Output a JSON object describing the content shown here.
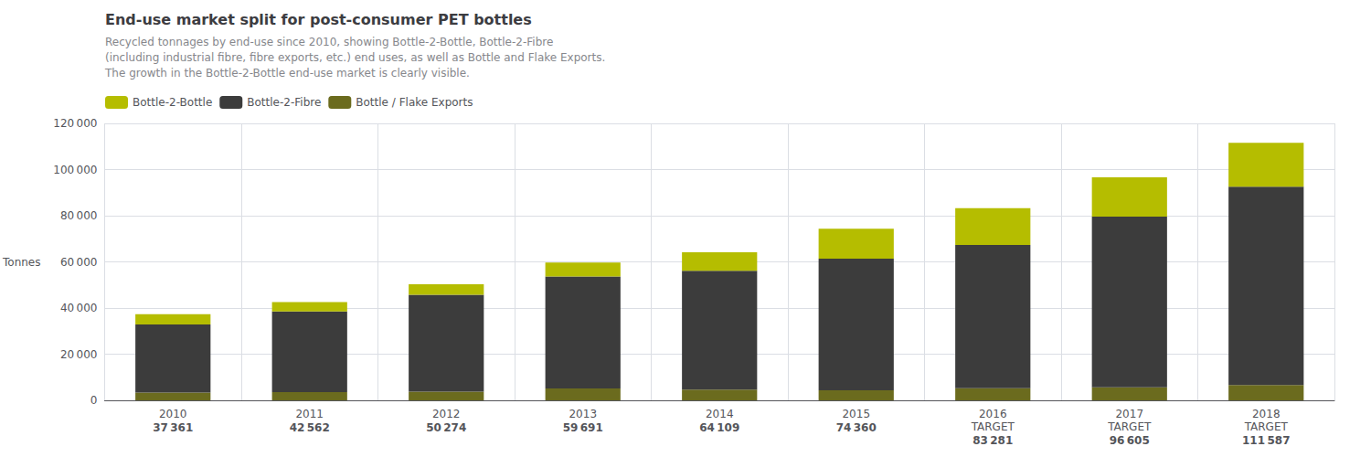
{
  "chart_data": {
    "type": "bar",
    "title": "End-use market split for post-consumer PET bottles",
    "subtitle": "Recycled tonnages by end-use since 2010, showing Bottle-2-Bottle, Bottle-2-Fibre\n(including industrial fibre, fibre exports, etc.) end uses, as well as Bottle and Flake Exports.\nThe growth in the Bottle-2-Bottle end-use market is clearly visible.",
    "ylabel": "Tonnes",
    "categories": [
      "2010",
      "2011",
      "2012",
      "2013",
      "2014",
      "2015",
      "2016\nTARGET",
      "2017\nTARGET",
      "2018\nTARGET"
    ],
    "stacked": true,
    "series": [
      {
        "name": "Bottle / Flake Exports",
        "color": "#6b6b1e",
        "values": [
          3361,
          3562,
          3774,
          5191,
          4609,
          4360,
          5281,
          5605,
          6587
        ]
      },
      {
        "name": "Bottle-2-Fibre",
        "color": "#3c3c3c",
        "values": [
          29500,
          35000,
          42000,
          48500,
          51500,
          57000,
          62000,
          74000,
          86000
        ]
      },
      {
        "name": "Bottle-2-Bottle",
        "color": "#b5bd00",
        "values": [
          4500,
          4000,
          4500,
          6000,
          8000,
          13000,
          16000,
          17000,
          19000
        ]
      }
    ],
    "totals": [
      37361,
      42562,
      50274,
      59691,
      64109,
      74360,
      83281,
      96605,
      111587
    ],
    "total_labels": [
      "37 361",
      "42 562",
      "50 274",
      "59 691",
      "64 109",
      "74 360",
      "83 281",
      "96 605",
      "111 587"
    ],
    "ylim": [
      0,
      120000
    ],
    "yticks": [
      0,
      {
        "value": 20000,
        "label": "20 000"
      },
      {
        "value": 40000,
        "label": "40 000"
      },
      {
        "value": 60000,
        "label": "60 000"
      },
      {
        "value": 80000,
        "label": "80 000"
      },
      {
        "value": 100000,
        "label": "100 000"
      },
      {
        "value": 120000,
        "label": "120 000"
      }
    ],
    "grid": true,
    "legend": "top left"
  }
}
